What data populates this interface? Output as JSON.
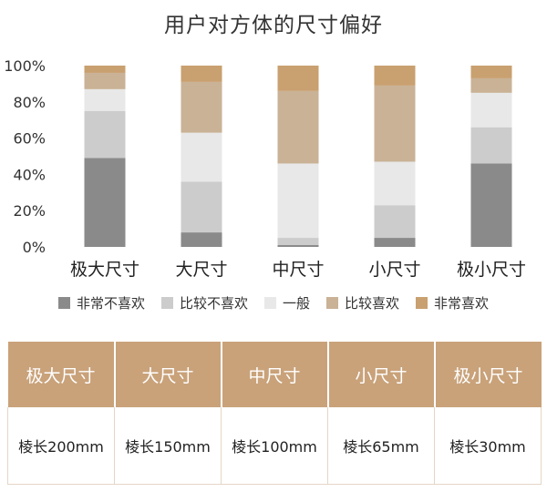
{
  "chart_data": {
    "type": "bar",
    "stacked": true,
    "title": "用户对方体的尺寸偏好",
    "categories": [
      "极大尺寸",
      "大尺寸",
      "中尺寸",
      "小尺寸",
      "极小尺寸"
    ],
    "ylim": [
      0,
      100
    ],
    "yticks": [
      "0%",
      "20%",
      "40%",
      "60%",
      "80%",
      "100%"
    ],
    "legend_position": "bottom",
    "series": [
      {
        "name": "非常不喜欢",
        "color": "#8a8a8a",
        "values": [
          49,
          8,
          1,
          5,
          46
        ]
      },
      {
        "name": "比较不喜欢",
        "color": "#cccccc",
        "values": [
          26,
          28,
          4,
          18,
          20
        ]
      },
      {
        "name": "一般",
        "color": "#e8e8e8",
        "values": [
          12,
          27,
          41,
          24,
          19
        ]
      },
      {
        "name": "比较喜欢",
        "color": "#c9b296",
        "values": [
          9,
          28,
          40,
          42,
          8
        ]
      },
      {
        "name": "非常喜欢",
        "color": "#c9a070",
        "values": [
          4,
          9,
          14,
          11,
          7
        ]
      }
    ]
  },
  "table": {
    "header_color": "#c9a27a",
    "headers": [
      "极大尺寸",
      "大尺寸",
      "中尺寸",
      "小尺寸",
      "极小尺寸"
    ],
    "rows": [
      [
        "棱长200mm",
        "棱长150mm",
        "棱长100mm",
        "棱长65mm",
        "棱长30mm"
      ]
    ]
  }
}
